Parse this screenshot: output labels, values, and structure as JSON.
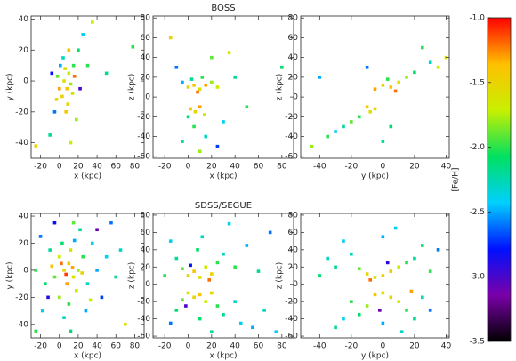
{
  "chart_data": [
    {
      "type": "heatmap",
      "xlabel": "x (kpc)",
      "ylabel": "y (kpc)",
      "xlim": [
        -30,
        90
      ],
      "xticks": [
        -20,
        0,
        20,
        40,
        60,
        80
      ],
      "ylim": [
        -50,
        42
      ],
      "yticks": [
        -40,
        -20,
        0,
        20,
        40
      ],
      "x": [
        5,
        8,
        10,
        3,
        12,
        6,
        0,
        15,
        9,
        -2,
        4,
        14,
        20,
        25,
        -5,
        18,
        -10,
        30,
        22,
        7,
        -8,
        35,
        50,
        78,
        -25,
        12,
        10,
        1,
        16,
        -3
      ],
      "y": [
        0,
        -5,
        5,
        -10,
        -2,
        8,
        -5,
        10,
        -15,
        3,
        15,
        -8,
        20,
        30,
        -20,
        -25,
        -35,
        10,
        -5,
        -20,
        5,
        38,
        5,
        22,
        -42,
        -40,
        20,
        10,
        3,
        -12
      ],
      "values": [
        -1.6,
        -1.4,
        -1.7,
        -1.5,
        -1.8,
        -1.6,
        -1.3,
        -2.0,
        -1.5,
        -1.9,
        -2.3,
        -1.6,
        -2.1,
        -2.4,
        -2.6,
        -1.8,
        -2.2,
        -2.0,
        -3.0,
        -1.4,
        -2.8,
        -1.7,
        -2.2,
        -2.0,
        -1.5,
        -1.7,
        -1.4,
        -2.5,
        -1.2,
        -1.5
      ]
    },
    {
      "type": "heatmap",
      "title": "BOSS",
      "xlabel": "x (kpc)",
      "ylabel": "z (kpc)",
      "xlim": [
        -30,
        90
      ],
      "xticks": [
        -20,
        0,
        20,
        40,
        60,
        80
      ],
      "ylim": [
        -62,
        82
      ],
      "yticks": [
        -60,
        -40,
        -20,
        0,
        20,
        40,
        60,
        80
      ],
      "x": [
        0,
        5,
        10,
        15,
        20,
        3,
        12,
        8,
        -5,
        25,
        2,
        6,
        10,
        14,
        0,
        5,
        15,
        -10,
        20,
        40,
        30,
        -15,
        50,
        80,
        10,
        25,
        35,
        -5
      ],
      "y": [
        10,
        12,
        8,
        12,
        15,
        18,
        20,
        5,
        15,
        10,
        -12,
        -15,
        -10,
        -18,
        -20,
        -30,
        -40,
        30,
        40,
        20,
        -25,
        60,
        -10,
        30,
        -55,
        -50,
        45,
        -45
      ],
      "values": [
        -1.5,
        -1.4,
        -1.6,
        -1.3,
        -1.8,
        -2.2,
        -2.0,
        -1.2,
        -2.5,
        -1.7,
        -1.4,
        -1.5,
        -1.3,
        -1.6,
        -2.1,
        -2.0,
        -2.3,
        -2.6,
        -1.9,
        -2.2,
        -2.4,
        -1.5,
        -2.0,
        -2.1,
        -1.8,
        -2.7,
        -1.6,
        -2.2
      ]
    },
    {
      "type": "heatmap",
      "xlabel": "y (kpc)",
      "ylabel": "z (kpc)",
      "xlim": [
        -52,
        42
      ],
      "xticks": [
        -40,
        -20,
        0,
        20,
        40
      ],
      "ylim": [
        -62,
        82
      ],
      "yticks": [
        -60,
        -40,
        -20,
        0,
        20,
        40,
        60,
        80
      ],
      "x": [
        0,
        5,
        10,
        -5,
        3,
        8,
        15,
        20,
        30,
        35,
        -10,
        -5,
        -8,
        -15,
        -20,
        -25,
        -35,
        -45,
        -30,
        5,
        -40,
        40,
        25,
        -10,
        0
      ],
      "y": [
        12,
        10,
        15,
        8,
        18,
        6,
        20,
        25,
        35,
        30,
        -10,
        -12,
        -15,
        -20,
        -25,
        -30,
        -40,
        -50,
        -35,
        -30,
        20,
        40,
        50,
        30,
        -45
      ],
      "values": [
        -1.5,
        -1.4,
        -1.6,
        -1.3,
        -2.0,
        -1.2,
        -1.8,
        -2.1,
        -2.3,
        -1.7,
        -1.4,
        -1.5,
        -1.6,
        -2.0,
        -1.9,
        -2.2,
        -2.0,
        -1.8,
        -2.4,
        -2.1,
        -2.5,
        -1.6,
        -2.0,
        -2.6,
        -2.2
      ]
    },
    {
      "type": "heatmap",
      "xlabel": "x (kpc)",
      "ylabel": "y (kpc)",
      "xlim": [
        -30,
        90
      ],
      "xticks": [
        -20,
        0,
        20,
        40,
        60,
        80
      ],
      "ylim": [
        -50,
        42
      ],
      "yticks": [
        -40,
        -20,
        0,
        20,
        40
      ],
      "x": [
        5,
        10,
        15,
        0,
        8,
        20,
        12,
        -5,
        3,
        18,
        25,
        -10,
        30,
        0,
        10,
        35,
        -15,
        40,
        22,
        -20,
        15,
        5,
        45,
        -25,
        50,
        28,
        -5,
        60,
        -18,
        12,
        70,
        -25,
        55,
        2,
        14,
        7,
        24,
        -8,
        33,
        -12,
        40,
        16,
        65
      ],
      "y": [
        0,
        5,
        -5,
        10,
        -10,
        0,
        15,
        -5,
        20,
        -15,
        10,
        15,
        -10,
        -20,
        -25,
        20,
        -10,
        0,
        30,
        25,
        35,
        -35,
        -20,
        0,
        10,
        -30,
        35,
        -5,
        -30,
        -45,
        -40,
        -45,
        35,
        5,
        2,
        -3,
        -2,
        3,
        -22,
        -20,
        30,
        22,
        15
      ],
      "values": [
        -1.5,
        -1.4,
        -1.6,
        -1.7,
        -1.3,
        -1.8,
        -1.6,
        -1.9,
        -2.1,
        -1.7,
        -2.0,
        -2.2,
        -2.3,
        -1.8,
        -2.0,
        -2.4,
        -2.1,
        -2.5,
        -2.2,
        -2.6,
        -1.9,
        -2.3,
        -2.7,
        -2.0,
        -2.4,
        -2.5,
        -2.8,
        -2.2,
        -2.4,
        -2.1,
        -1.6,
        -2.0,
        -2.6,
        -1.2,
        -1.3,
        -1.1,
        -1.5,
        -1.4,
        -1.7,
        -2.9,
        -3.1,
        -2.5,
        -2.3
      ]
    },
    {
      "type": "heatmap",
      "title": "SDSS/SEGUE",
      "xlabel": "x (kpc)",
      "ylabel": "z (kpc)",
      "xlim": [
        -30,
        90
      ],
      "xticks": [
        -20,
        0,
        20,
        40,
        60,
        80
      ],
      "ylim": [
        -62,
        82
      ],
      "yticks": [
        -60,
        -40,
        -20,
        0,
        20,
        40,
        60,
        80
      ],
      "x": [
        0,
        5,
        10,
        15,
        20,
        25,
        -5,
        -10,
        30,
        8,
        -15,
        40,
        50,
        60,
        -20,
        12,
        70,
        35,
        0,
        5,
        10,
        15,
        20,
        -5,
        25,
        30,
        -10,
        40,
        45,
        55,
        10,
        -15,
        65,
        20,
        2,
        18,
        -2,
        75
      ],
      "y": [
        10,
        15,
        8,
        20,
        12,
        25,
        18,
        30,
        35,
        40,
        50,
        20,
        45,
        15,
        10,
        55,
        60,
        70,
        -10,
        -15,
        -12,
        -20,
        -10,
        -18,
        -25,
        -35,
        -30,
        -20,
        -45,
        -50,
        -40,
        -45,
        -30,
        -55,
        22,
        5,
        -25,
        -55
      ],
      "values": [
        -1.5,
        -1.4,
        -1.6,
        -1.7,
        -1.5,
        -2.0,
        -1.9,
        -2.2,
        -2.3,
        -2.1,
        -2.4,
        -2.0,
        -2.5,
        -2.2,
        -2.0,
        -2.3,
        -2.6,
        -2.4,
        -1.6,
        -1.5,
        -1.4,
        -1.7,
        -1.5,
        -1.9,
        -2.0,
        -2.2,
        -2.1,
        -2.3,
        -2.4,
        -2.5,
        -2.1,
        -2.6,
        -2.3,
        -2.2,
        -2.8,
        -1.2,
        -3.0,
        -2.4
      ]
    },
    {
      "type": "heatmap",
      "xlabel": "y (kpc)",
      "ylabel": "z (kpc)",
      "xlim": [
        -52,
        42
      ],
      "xticks": [
        -40,
        -20,
        0,
        20,
        40
      ],
      "ylim": [
        -62,
        82
      ],
      "yticks": [
        -60,
        -40,
        -20,
        0,
        20,
        40,
        60,
        80
      ],
      "x": [
        0,
        5,
        -5,
        10,
        -10,
        15,
        -15,
        20,
        -20,
        25,
        -25,
        30,
        -30,
        0,
        35,
        -35,
        8,
        -40,
        0,
        5,
        -5,
        10,
        -10,
        15,
        -15,
        20,
        -20,
        25,
        -25,
        0,
        30,
        -30,
        12,
        -8,
        3,
        18,
        -2
      ],
      "y": [
        10,
        15,
        8,
        20,
        12,
        25,
        18,
        30,
        35,
        45,
        50,
        15,
        20,
        55,
        40,
        30,
        65,
        10,
        -10,
        -15,
        -12,
        -20,
        -25,
        -30,
        -35,
        -40,
        -20,
        -15,
        -40,
        -45,
        -30,
        -50,
        -55,
        5,
        25,
        -8,
        -30
      ],
      "values": [
        -1.5,
        -1.4,
        -1.6,
        -1.7,
        -1.5,
        -2.0,
        -1.9,
        -2.2,
        -2.3,
        -2.1,
        -2.4,
        -2.0,
        -2.2,
        -2.5,
        -2.6,
        -2.3,
        -2.4,
        -2.1,
        -1.6,
        -1.5,
        -1.4,
        -1.7,
        -1.8,
        -2.0,
        -2.1,
        -2.2,
        -2.0,
        -2.3,
        -2.4,
        -2.5,
        -2.6,
        -2.2,
        -2.3,
        -1.2,
        -2.9,
        -1.3,
        -3.1
      ]
    },
    {
      "type": "colorbar",
      "label": "[Fe/H]",
      "ylim": [
        -3.5,
        -1.0
      ],
      "yticks": [
        {
          "value": -1.0,
          "label": "-1.0"
        },
        -1.5,
        {
          "value": -2.0,
          "label": "-2.0"
        },
        -2.5,
        {
          "value": -3.0,
          "label": "-3.0"
        },
        -3.5
      ],
      "colormap": [
        "#000000",
        "#7a00a8",
        "#0010ff",
        "#00d0ff",
        "#00e060",
        "#c8f000",
        "#ffc000",
        "#ff0000"
      ]
    }
  ]
}
